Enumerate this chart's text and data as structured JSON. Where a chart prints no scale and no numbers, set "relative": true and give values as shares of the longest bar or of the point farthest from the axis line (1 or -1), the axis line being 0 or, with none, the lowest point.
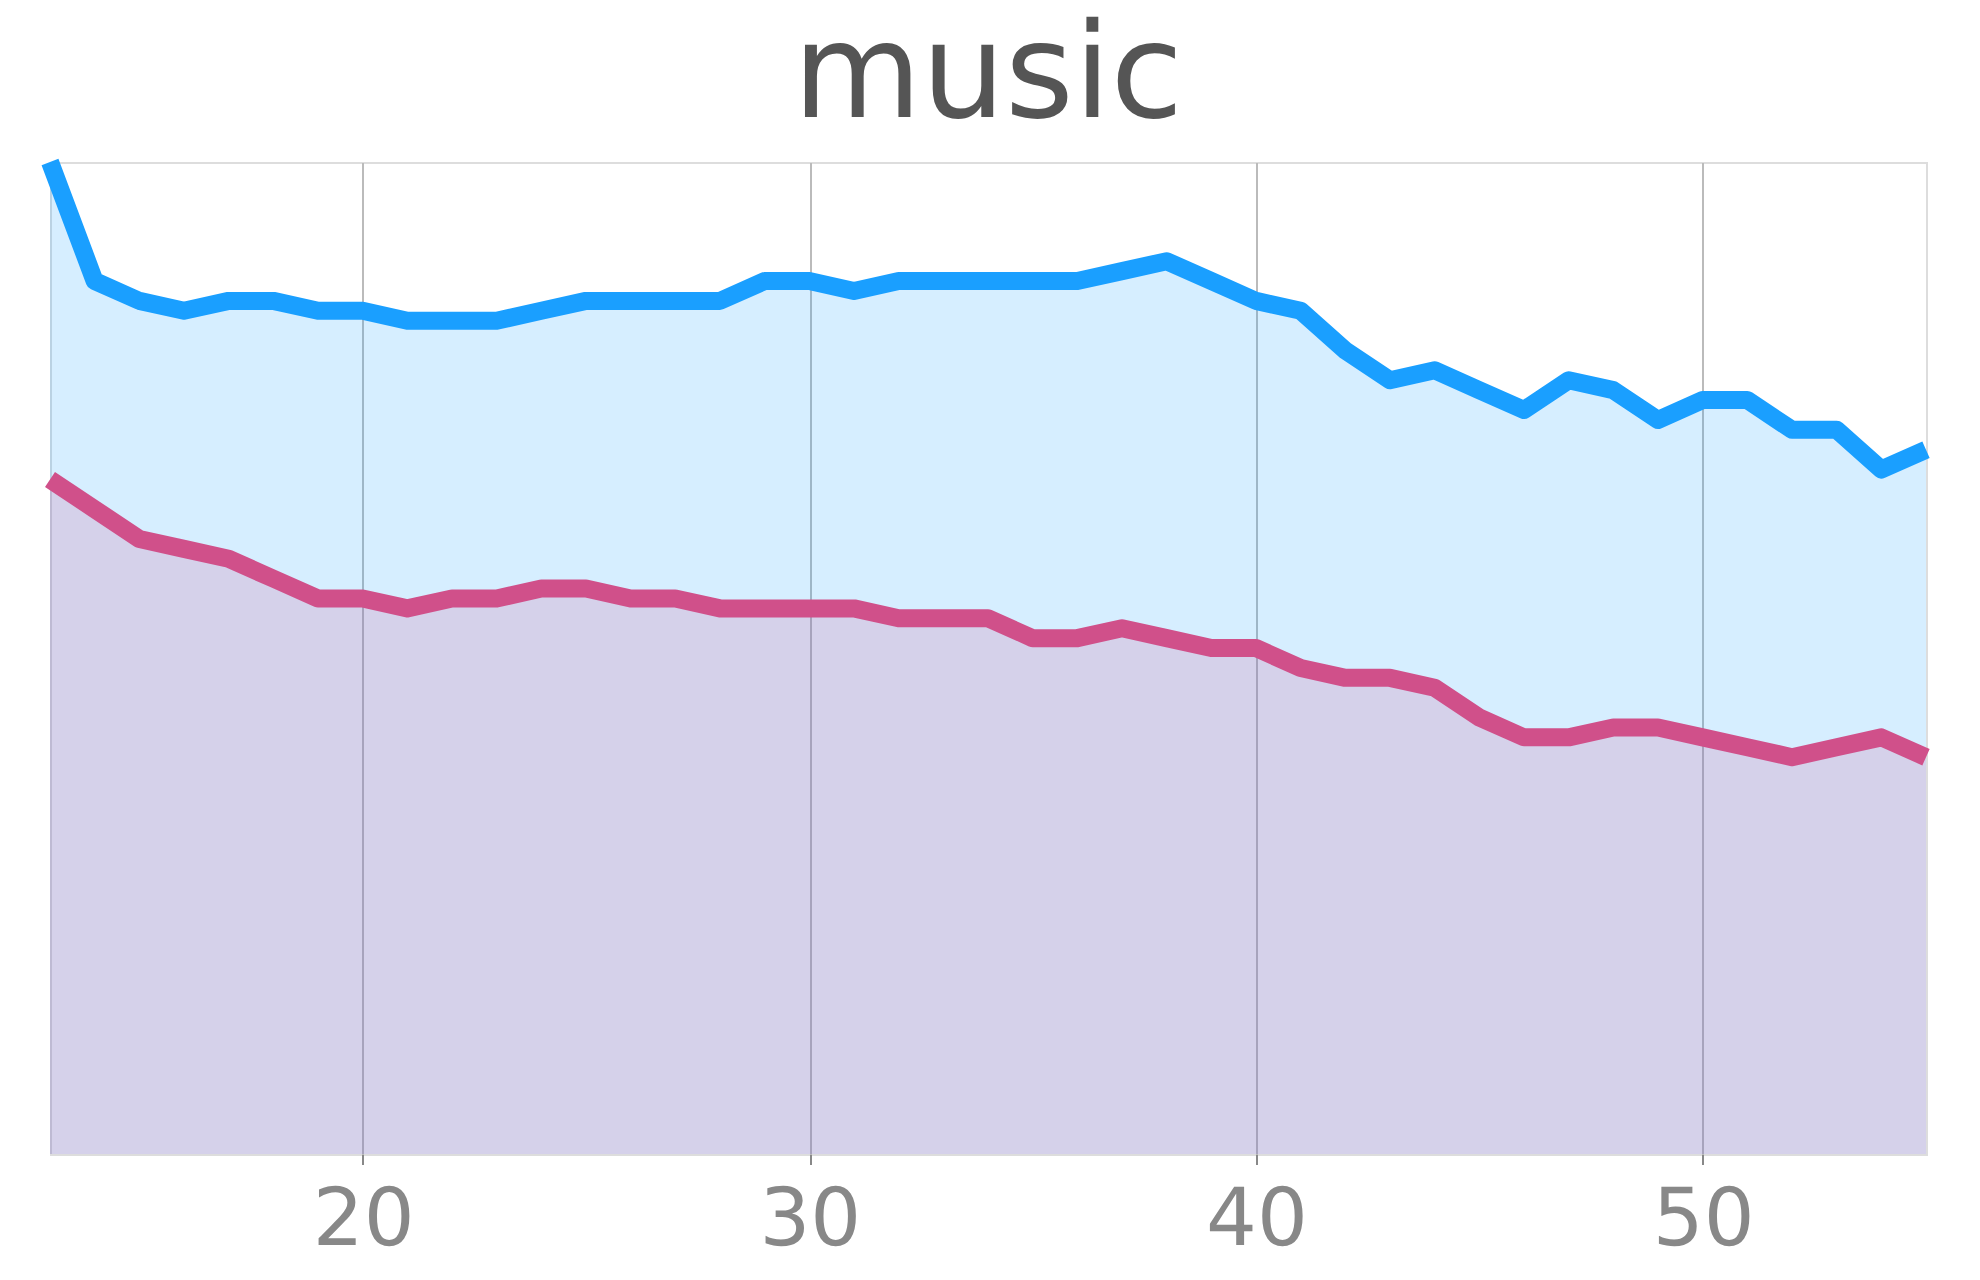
{
  "chart_data": {
    "type": "area",
    "title": "music",
    "relative": true,
    "x": [
      13,
      14,
      15,
      16,
      17,
      18,
      19,
      20,
      21,
      22,
      23,
      24,
      25,
      26,
      27,
      28,
      29,
      30,
      31,
      32,
      33,
      34,
      35,
      36,
      37,
      38,
      39,
      40,
      41,
      42,
      43,
      44,
      45,
      46,
      47,
      48,
      49,
      50,
      51,
      52,
      53,
      54,
      55
    ],
    "xlim": [
      13,
      55
    ],
    "xticks": [
      20,
      30,
      40,
      50
    ],
    "grid": "x",
    "tick_labels": "x",
    "series": [
      {
        "color": "#1a9fff",
        "values": [
          1.0,
          0.88,
          0.86,
          0.85,
          0.86,
          0.86,
          0.85,
          0.85,
          0.84,
          0.84,
          0.84,
          0.85,
          0.86,
          0.86,
          0.86,
          0.86,
          0.88,
          0.88,
          0.87,
          0.88,
          0.88,
          0.88,
          0.88,
          0.88,
          0.89,
          0.9,
          0.88,
          0.86,
          0.85,
          0.81,
          0.78,
          0.79,
          0.77,
          0.75,
          0.78,
          0.77,
          0.74,
          0.76,
          0.76,
          0.73,
          0.73,
          0.69,
          0.71
        ]
      },
      {
        "color": "#d0508a",
        "values": [
          0.68,
          0.65,
          0.62,
          0.61,
          0.6,
          0.58,
          0.56,
          0.56,
          0.55,
          0.56,
          0.56,
          0.57,
          0.57,
          0.56,
          0.56,
          0.55,
          0.55,
          0.55,
          0.55,
          0.54,
          0.54,
          0.54,
          0.52,
          0.52,
          0.53,
          0.52,
          0.51,
          0.51,
          0.49,
          0.48,
          0.48,
          0.47,
          0.44,
          0.42,
          0.42,
          0.43,
          0.43,
          0.42,
          0.41,
          0.4,
          0.41,
          0.42,
          0.4
        ]
      }
    ]
  }
}
